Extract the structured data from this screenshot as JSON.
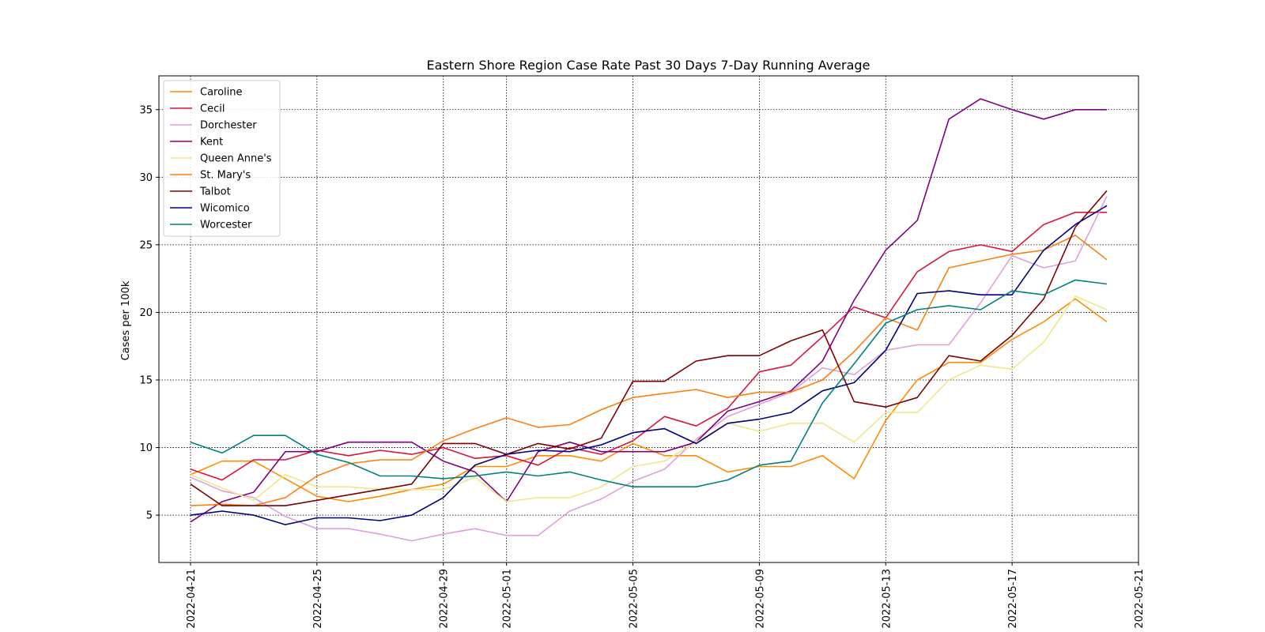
{
  "chart_data": {
    "type": "line",
    "title": "Eastern Shore Region Case Rate  Past 30 Days 7-Day Running Average",
    "xlabel": "",
    "ylabel": "Cases per 100k",
    "x": [
      "2022-04-21",
      "2022-04-22",
      "2022-04-23",
      "2022-04-24",
      "2022-04-25",
      "2022-04-26",
      "2022-04-27",
      "2022-04-28",
      "2022-04-29",
      "2022-04-30",
      "2022-05-01",
      "2022-05-02",
      "2022-05-03",
      "2022-05-04",
      "2022-05-05",
      "2022-05-06",
      "2022-05-07",
      "2022-05-08",
      "2022-05-09",
      "2022-05-10",
      "2022-05-11",
      "2022-05-12",
      "2022-05-13",
      "2022-05-14",
      "2022-05-15",
      "2022-05-16",
      "2022-05-17",
      "2022-05-18",
      "2022-05-19",
      "2022-05-20"
    ],
    "x_ticks": [
      "2022-04-21",
      "2022-04-25",
      "2022-04-29",
      "2022-05-01",
      "2022-05-05",
      "2022-05-09",
      "2022-05-13",
      "2022-05-17",
      "2022-05-21"
    ],
    "xlim": [
      "2022-04-20",
      "2022-05-21"
    ],
    "y_ticks": [
      5,
      10,
      15,
      20,
      25,
      30,
      35
    ],
    "ylim": [
      1.5,
      37.5
    ],
    "grid": true,
    "legend_position": "top-left",
    "series": [
      {
        "name": "Caroline",
        "color": "#ff8c00",
        "values": [
          8.0,
          9.0,
          9.0,
          7.7,
          6.4,
          6.0,
          6.4,
          6.9,
          7.3,
          8.6,
          8.6,
          9.4,
          9.4,
          9.0,
          10.3,
          9.4,
          9.4,
          8.2,
          8.6,
          8.6,
          9.4,
          7.7,
          12.0,
          15.0,
          16.3,
          16.3,
          18.0,
          19.3,
          21.0,
          19.3
        ]
      },
      {
        "name": "Cecil",
        "color": "#dc143c",
        "values": [
          8.4,
          7.6,
          9.1,
          9.1,
          9.8,
          9.4,
          9.8,
          9.5,
          10.0,
          9.2,
          9.4,
          8.7,
          10.0,
          9.5,
          10.5,
          12.3,
          11.6,
          12.9,
          15.6,
          16.1,
          18.2,
          20.4,
          19.6,
          23.0,
          24.5,
          25.0,
          24.5,
          26.5,
          27.4,
          27.4
        ]
      },
      {
        "name": "Dorchester",
        "color": "#dda0dd",
        "values": [
          7.8,
          6.8,
          6.3,
          4.9,
          4.0,
          4.0,
          3.6,
          3.1,
          3.6,
          4.0,
          3.5,
          3.5,
          5.3,
          6.2,
          7.5,
          8.4,
          10.6,
          12.3,
          13.2,
          14.1,
          15.9,
          15.4,
          17.2,
          17.6,
          17.6,
          20.7,
          24.2,
          23.3,
          23.8,
          28.6
        ]
      },
      {
        "name": "Kent",
        "color": "#800080",
        "values": [
          4.5,
          6.0,
          6.7,
          9.7,
          9.7,
          10.4,
          10.4,
          10.4,
          9.0,
          8.2,
          6.0,
          9.7,
          10.4,
          9.7,
          9.7,
          9.7,
          10.4,
          12.7,
          13.4,
          14.2,
          16.4,
          20.9,
          24.6,
          26.8,
          34.3,
          35.8,
          35.0,
          34.3,
          35.0,
          35.0
        ]
      },
      {
        "name": "Queen Anne's",
        "color": "#f0e68c",
        "values": [
          8.0,
          7.0,
          6.1,
          8.0,
          7.1,
          7.1,
          6.9,
          6.9,
          6.9,
          7.8,
          6.0,
          6.3,
          6.3,
          7.1,
          8.6,
          9.0,
          10.4,
          11.8,
          11.2,
          11.8,
          11.8,
          10.4,
          12.6,
          12.6,
          15.0,
          16.1,
          15.8,
          17.8,
          21.2,
          20.2
        ]
      },
      {
        "name": "St. Mary's",
        "color": "#ff7f0e",
        "values": [
          5.7,
          5.8,
          5.7,
          6.3,
          7.9,
          8.8,
          9.1,
          9.1,
          10.5,
          11.4,
          12.2,
          11.5,
          11.7,
          12.8,
          13.7,
          14.0,
          14.3,
          13.7,
          14.1,
          14.1,
          15.0,
          17.1,
          19.6,
          18.7,
          23.3,
          23.8,
          24.3,
          24.6,
          25.7,
          23.9
        ]
      },
      {
        "name": "Talbot",
        "color": "#800000",
        "values": [
          7.3,
          5.7,
          5.7,
          5.7,
          6.1,
          6.5,
          6.9,
          7.3,
          10.3,
          10.3,
          9.5,
          10.3,
          9.9,
          10.7,
          14.9,
          14.9,
          16.4,
          16.8,
          16.8,
          17.9,
          18.7,
          13.4,
          13.0,
          13.7,
          16.8,
          16.4,
          18.3,
          21.0,
          26.3,
          29.0
        ]
      },
      {
        "name": "Wicomico",
        "color": "#000080",
        "values": [
          5.0,
          5.3,
          5.0,
          4.3,
          4.8,
          4.8,
          4.6,
          5.0,
          6.3,
          8.7,
          9.5,
          9.8,
          9.7,
          10.2,
          11.1,
          11.4,
          10.3,
          11.8,
          12.1,
          12.6,
          14.2,
          14.8,
          17.2,
          21.4,
          21.6,
          21.3,
          21.3,
          24.6,
          26.5,
          27.9
        ]
      },
      {
        "name": "Worcester",
        "color": "#008080",
        "values": [
          10.4,
          9.6,
          10.9,
          10.9,
          9.5,
          8.9,
          7.9,
          7.9,
          7.7,
          7.9,
          8.2,
          7.9,
          8.2,
          7.6,
          7.1,
          7.1,
          7.1,
          7.6,
          8.7,
          9.0,
          13.3,
          16.2,
          19.2,
          20.2,
          20.5,
          20.2,
          21.6,
          21.3,
          22.4,
          22.1
        ]
      }
    ]
  }
}
